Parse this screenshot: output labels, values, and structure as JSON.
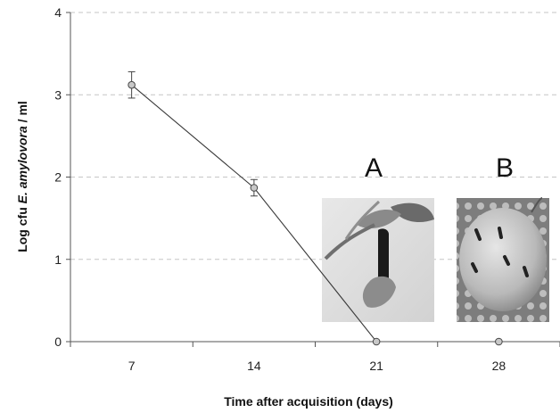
{
  "chart_data": {
    "type": "line",
    "xlabel": "Time after acquisition (days)",
    "ylabel_parts": [
      "Log cfu ",
      "E. amylovora",
      " / ml"
    ],
    "categories": [
      "7",
      "14",
      "21",
      "28"
    ],
    "yticks": [
      "0",
      "1",
      "2",
      "3",
      "4"
    ],
    "ylim": [
      0,
      4
    ],
    "grid": "horizontal dashed",
    "series": [
      {
        "values": [
          3.12,
          1.87,
          0.0,
          0.0
        ],
        "errors": [
          0.16,
          0.1,
          0.0,
          0.0
        ],
        "connected_points": 3,
        "line_color": "#3a3a3a",
        "marker_fill": "#c8c8c8"
      }
    ],
    "inset_panels": [
      {
        "label": "A",
        "depicts": "photo-shoot-with-black-lesion"
      },
      {
        "label": "B",
        "depicts": "photo-pear-fruit-with-lesions"
      }
    ]
  }
}
